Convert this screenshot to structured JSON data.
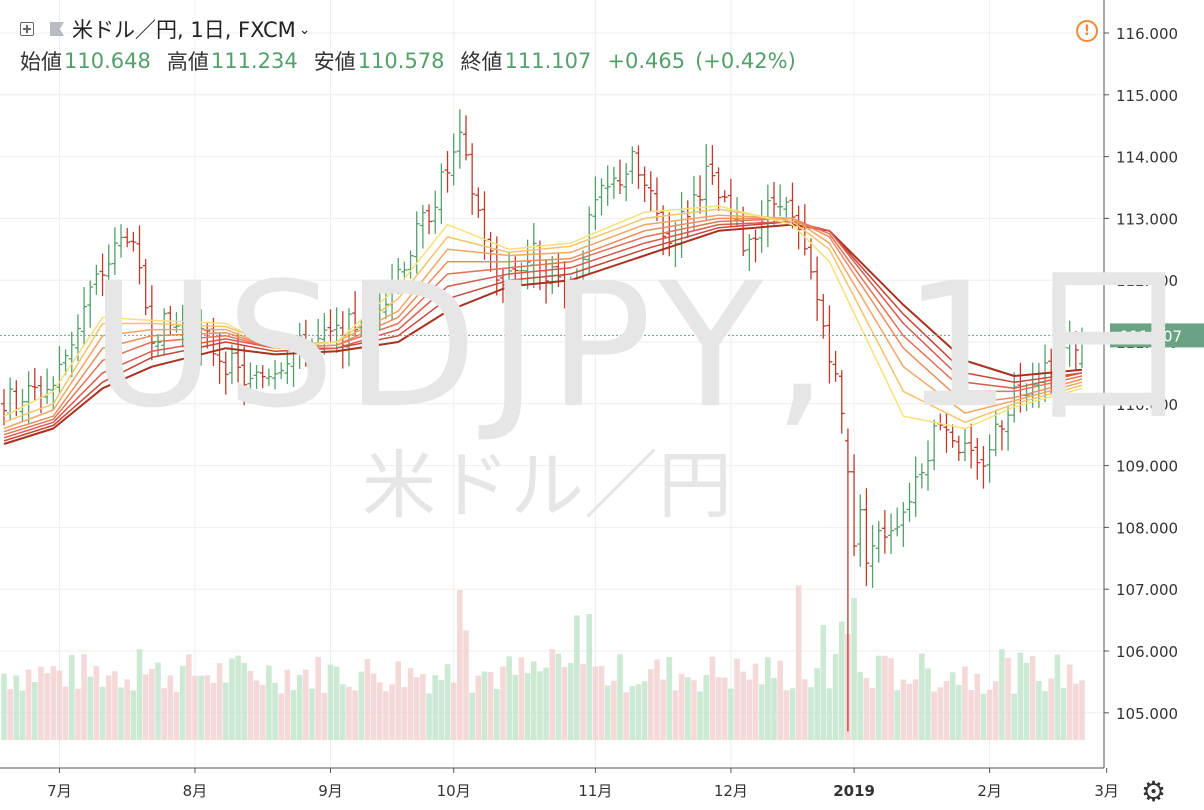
{
  "header": {
    "symbol_line": "米ドル／円, 1日, FXCM",
    "open_label": "始値",
    "open_value": "110.648",
    "high_label": "高値",
    "high_value": "111.234",
    "low_label": "安値",
    "low_value": "110.578",
    "close_label": "終値",
    "close_value": "111.107",
    "change": "+0.465",
    "change_pct": "(+0.42%)"
  },
  "watermark": {
    "main": "USDJPY, 1日",
    "sub": "米ドル／円"
  },
  "colors": {
    "up": "#53a06a",
    "down": "#c0392b",
    "vol_up": "#bfe3c8",
    "vol_down": "#f3cfcf",
    "price_tag": "#6aa384",
    "warning": "#f08a3a"
  },
  "icons": [
    "plus-box-icon",
    "flag-icon",
    "chevron-down-icon",
    "warning-icon",
    "gear-icon"
  ],
  "chart_data": {
    "type": "line",
    "title": "米ドル／円, 1日, FXCM",
    "y_axis": {
      "ylim": [
        104.2,
        116.5
      ],
      "tick_labels": [
        "105.000",
        "106.000",
        "107.000",
        "108.000",
        "109.000",
        "110.000",
        "111.000",
        "112.000",
        "113.000",
        "114.000",
        "115.000",
        "116.000"
      ],
      "ticks": [
        105,
        106,
        107,
        108,
        109,
        110,
        111,
        112,
        113,
        114,
        115,
        116
      ]
    },
    "x_axis": {
      "xlim": [
        0,
        175
      ],
      "tick_labels": [
        {
          "label": "7月",
          "i": 9
        },
        {
          "label": "8月",
          "i": 31
        },
        {
          "label": "9月",
          "i": 53
        },
        {
          "label": "10月",
          "i": 73
        },
        {
          "label": "11月",
          "i": 96
        },
        {
          "label": "12月",
          "i": 118
        },
        {
          "label": "2019",
          "i": 138
        },
        {
          "label": "2月",
          "i": 160
        },
        {
          "label": "3月",
          "i": 179
        }
      ]
    },
    "last_price": {
      "label": "111.107",
      "value": 111.107
    },
    "series_description": "Daily USDJPY bars with a ribbon of 8 moving averages and volume",
    "ma_ribbon": [
      {
        "i": 0,
        "values": [
          109.8,
          109.7,
          109.6,
          109.55,
          109.5,
          109.45,
          109.4,
          109.35
        ]
      },
      {
        "i": 8,
        "values": [
          110.2,
          110.0,
          109.9,
          109.8,
          109.75,
          109.7,
          109.65,
          109.6
        ]
      },
      {
        "i": 16,
        "values": [
          111.4,
          111.3,
          111.1,
          110.9,
          110.7,
          110.5,
          110.35,
          110.25
        ]
      },
      {
        "i": 24,
        "values": [
          111.35,
          111.3,
          111.2,
          111.1,
          111.0,
          110.85,
          110.75,
          110.6
        ]
      },
      {
        "i": 36,
        "values": [
          111.3,
          111.25,
          111.2,
          111.15,
          111.1,
          111.05,
          111.0,
          110.9
        ]
      },
      {
        "i": 44,
        "values": [
          110.9,
          110.95,
          110.9,
          110.9,
          110.9,
          110.9,
          110.85,
          110.8
        ]
      },
      {
        "i": 54,
        "values": [
          111.0,
          111.0,
          111.0,
          110.95,
          110.95,
          110.9,
          110.9,
          110.85
        ]
      },
      {
        "i": 64,
        "values": [
          111.9,
          111.7,
          111.5,
          111.4,
          111.3,
          111.2,
          111.1,
          111.0
        ]
      },
      {
        "i": 72,
        "values": [
          112.9,
          112.7,
          112.5,
          112.3,
          112.1,
          111.9,
          111.7,
          111.5
        ]
      },
      {
        "i": 82,
        "values": [
          112.5,
          112.45,
          112.4,
          112.3,
          112.2,
          112.1,
          112.0,
          111.9
        ]
      },
      {
        "i": 92,
        "values": [
          112.6,
          112.55,
          112.45,
          112.35,
          112.3,
          112.2,
          112.1,
          112.0
        ]
      },
      {
        "i": 104,
        "values": [
          113.1,
          113.0,
          112.9,
          112.8,
          112.7,
          112.6,
          112.5,
          112.4
        ]
      },
      {
        "i": 116,
        "values": [
          113.2,
          113.15,
          113.05,
          113.0,
          112.95,
          112.9,
          112.85,
          112.8
        ]
      },
      {
        "i": 128,
        "values": [
          112.9,
          112.95,
          113.0,
          113.0,
          113.0,
          112.95,
          112.95,
          112.9
        ]
      },
      {
        "i": 134,
        "values": [
          112.3,
          112.5,
          112.6,
          112.7,
          112.75,
          112.8,
          112.8,
          112.8
        ]
      },
      {
        "i": 146,
        "values": [
          109.8,
          110.2,
          110.6,
          110.9,
          111.1,
          111.3,
          111.45,
          111.6
        ]
      },
      {
        "i": 156,
        "values": [
          109.6,
          109.7,
          109.85,
          110.0,
          110.2,
          110.35,
          110.5,
          110.7
        ]
      },
      {
        "i": 164,
        "values": [
          109.95,
          110.0,
          110.05,
          110.1,
          110.2,
          110.25,
          110.35,
          110.45
        ]
      },
      {
        "i": 175,
        "values": [
          110.25,
          110.3,
          110.35,
          110.4,
          110.45,
          110.5,
          110.5,
          110.55
        ]
      }
    ],
    "price_anchors": [
      {
        "i": 0,
        "v": 110.0
      },
      {
        "i": 8,
        "v": 110.3
      },
      {
        "i": 14,
        "v": 111.8
      },
      {
        "i": 20,
        "v": 112.8
      },
      {
        "i": 24,
        "v": 111.2
      },
      {
        "i": 30,
        "v": 111.3
      },
      {
        "i": 40,
        "v": 110.3
      },
      {
        "i": 46,
        "v": 110.8
      },
      {
        "i": 54,
        "v": 111.1
      },
      {
        "i": 60,
        "v": 111.5
      },
      {
        "i": 66,
        "v": 112.5
      },
      {
        "i": 74,
        "v": 114.2
      },
      {
        "i": 80,
        "v": 112.0
      },
      {
        "i": 86,
        "v": 112.4
      },
      {
        "i": 92,
        "v": 111.8
      },
      {
        "i": 96,
        "v": 113.2
      },
      {
        "i": 102,
        "v": 113.9
      },
      {
        "i": 108,
        "v": 112.6
      },
      {
        "i": 114,
        "v": 113.7
      },
      {
        "i": 120,
        "v": 112.6
      },
      {
        "i": 126,
        "v": 113.4
      },
      {
        "i": 130,
        "v": 112.4
      },
      {
        "i": 134,
        "v": 110.9
      },
      {
        "i": 138,
        "v": 108.7
      },
      {
        "i": 140,
        "v": 107.6
      },
      {
        "i": 146,
        "v": 108.3
      },
      {
        "i": 152,
        "v": 109.8
      },
      {
        "i": 158,
        "v": 108.9
      },
      {
        "i": 164,
        "v": 110.2
      },
      {
        "i": 175,
        "v": 111.1
      }
    ],
    "volume_hint": "volume bars mostly at baseline level with spikes near 10月中旬, 11月上旬 and 2019年1月初"
  }
}
